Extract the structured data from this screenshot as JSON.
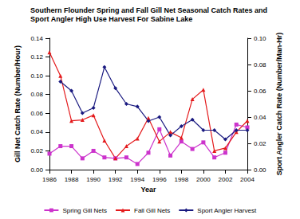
{
  "chart_data": {
    "type": "line",
    "title": "Southern Flounder Spring and Fall Gill Net Seasonal Catch Rates and Sport Angler High Use Harvest For Sabine Lake",
    "x_label": "Year",
    "y_label": "Gill Net Catch Rate (Number/Hour)",
    "y2_label": "Sport Angler Catch Rate (Number/Man-Hr)",
    "x": [
      1986,
      1987,
      1988,
      1989,
      1990,
      1991,
      1992,
      1993,
      1994,
      1995,
      1996,
      1997,
      1998,
      1999,
      2000,
      2001,
      2002,
      2003,
      2004
    ],
    "series": [
      {
        "name": "Spring Gill Nets",
        "color": "#cc33cc",
        "marker": "square",
        "axis": "y",
        "values": [
          0.017,
          0.025,
          0.025,
          0.012,
          0.02,
          0.013,
          0.012,
          0.013,
          0.006,
          0.018,
          0.043,
          0.015,
          0.03,
          0.022,
          0.029,
          0.013,
          0.018,
          0.048,
          0.045
        ]
      },
      {
        "name": "Fall Gill Nets",
        "color": "#e41a1c",
        "marker": "triangle",
        "axis": "y",
        "values": [
          0.125,
          0.1,
          0.052,
          0.053,
          0.058,
          0.031,
          0.012,
          0.025,
          0.033,
          0.055,
          0.03,
          0.04,
          0.034,
          0.075,
          0.085,
          0.02,
          0.023,
          0.04,
          0.052
        ]
      },
      {
        "name": "Sport Angler Harvest",
        "color": "#1a1a80",
        "marker": "diamond",
        "axis": "y2",
        "values": [
          null,
          0.067,
          0.06,
          0.043,
          0.047,
          0.078,
          0.062,
          0.05,
          0.048,
          0.037,
          0.04,
          0.026,
          0.033,
          0.038,
          0.03,
          0.03,
          0.023,
          0.03,
          0.03
        ]
      }
    ],
    "xlim": [
      1986,
      2004
    ],
    "xticks": [
      1986,
      1988,
      1990,
      1992,
      1994,
      1996,
      1998,
      2000,
      2002,
      2004
    ],
    "ylim": [
      0,
      0.14
    ],
    "yticks": [
      {
        "value": 0,
        "label": "0.00"
      },
      {
        "value": 0.02,
        "label": "0.02"
      },
      {
        "value": 0.04,
        "label": "0.04"
      },
      {
        "value": 0.06,
        "label": "0.06"
      },
      {
        "value": 0.08,
        "label": "0.08"
      },
      {
        "value": 0.1,
        "label": "0.10"
      },
      {
        "value": 0.12,
        "label": "0.12"
      },
      {
        "value": 0.14,
        "label": "0.14"
      }
    ],
    "y2lim": [
      0,
      0.1
    ],
    "y2ticks": [
      {
        "value": 0,
        "label": "0.00"
      },
      {
        "value": 0.02,
        "label": "0.02"
      },
      {
        "value": 0.04,
        "label": "0.04"
      },
      {
        "value": 0.06,
        "label": "0.06"
      },
      {
        "value": 0.08,
        "label": "0.08"
      },
      {
        "value": 0.1,
        "label": "0.10"
      }
    ],
    "legend": "bottom",
    "grid": false
  }
}
